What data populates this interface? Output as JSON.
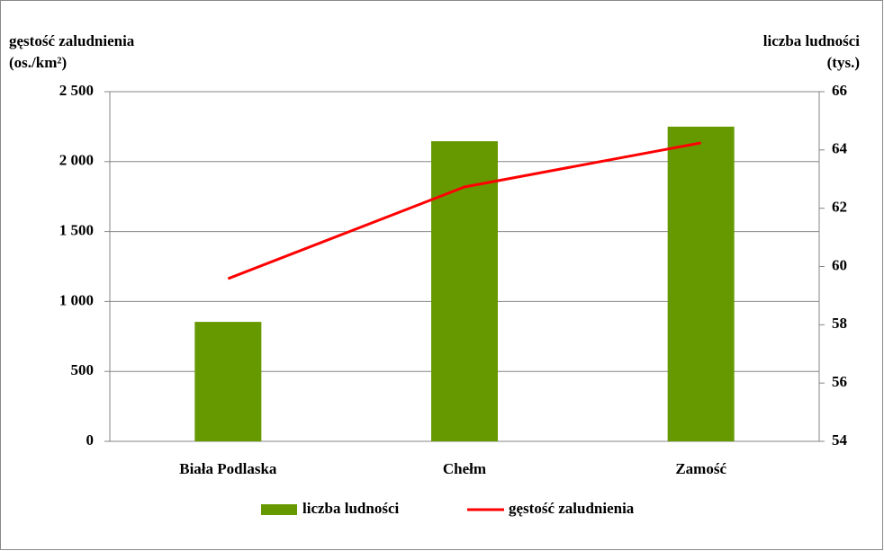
{
  "chart_data": {
    "type": "bar_line",
    "y_label": [
      "gęstość zaludnienia",
      "(os./km²)"
    ],
    "y2_label": [
      "liczba ludności",
      "(tys.)"
    ],
    "categories": [
      "Biała Podlaska",
      "Chełm",
      "Zamość"
    ],
    "series": [
      {
        "name": "liczba ludności",
        "type": "bar",
        "color": "#669900",
        "axis": "y2",
        "values": [
          58.1,
          64.3,
          64.8
        ]
      },
      {
        "name": "gęstość zaludnienia",
        "type": "line",
        "color": "#ff0000",
        "axis": "y",
        "values": [
          1163,
          1819,
          2134
        ]
      }
    ],
    "ylim": [
      0,
      2500
    ],
    "yticks": [
      0,
      500,
      {
        "value": 1000,
        "label": "1 000"
      },
      {
        "value": 1500,
        "label": "1 500"
      },
      {
        "value": 2000,
        "label": "2 000"
      },
      {
        "value": 2500,
        "label": "2 500"
      }
    ],
    "y2lim": [
      54,
      66
    ],
    "y2ticks": [
      54,
      56,
      58,
      60,
      62,
      64,
      66
    ],
    "grid": true,
    "legend": "bottom"
  }
}
